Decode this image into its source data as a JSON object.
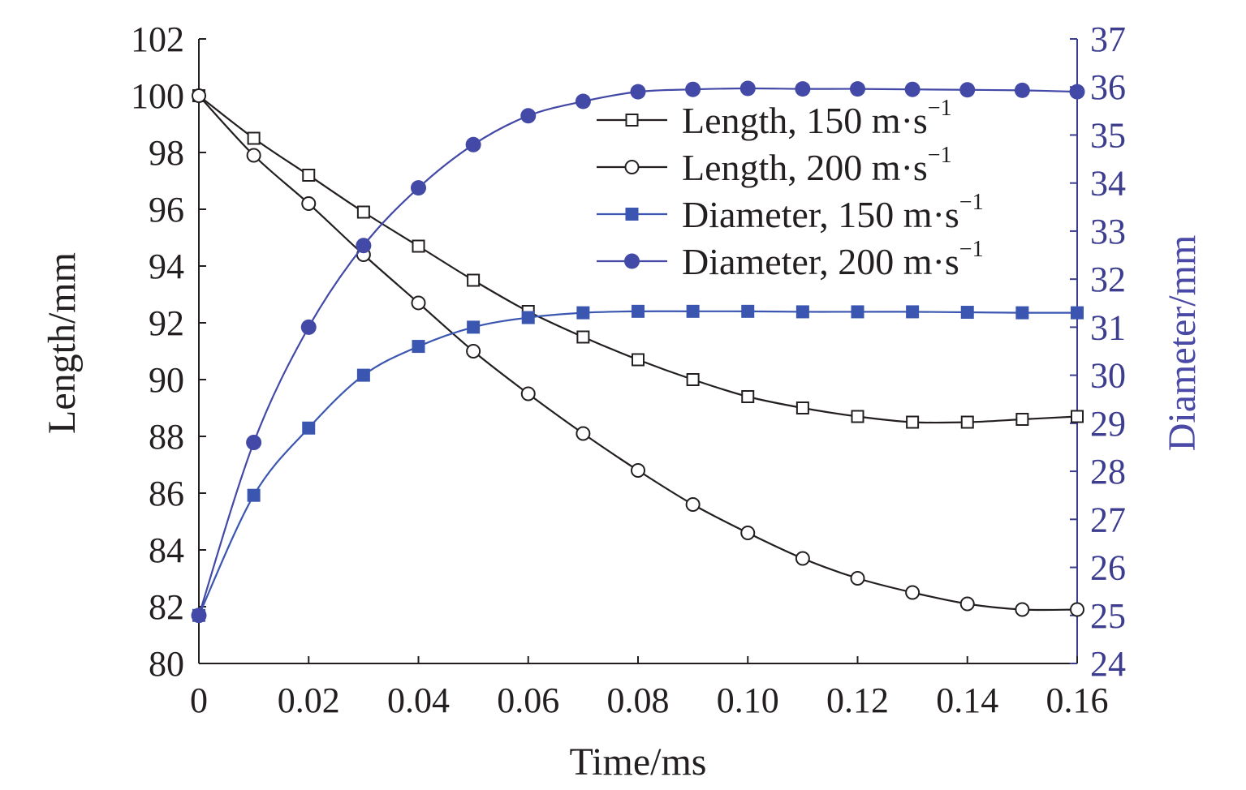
{
  "chart_data": {
    "type": "line",
    "title": "",
    "xlabel": "Time/ms",
    "ylabel": "Length/mm",
    "y2label": "Diameter/mm",
    "xlim": [
      0,
      0.16
    ],
    "ylim": [
      80,
      102
    ],
    "y2lim": [
      24,
      37
    ],
    "x_ticks": [
      "0",
      "0.02",
      "0.04",
      "0.06",
      "0.08",
      "0.10",
      "0.12",
      "0.14",
      "0.16"
    ],
    "x_tick_values": [
      0,
      0.02,
      0.04,
      0.06,
      0.08,
      0.1,
      0.12,
      0.14,
      0.16
    ],
    "y_ticks": [
      "80",
      "82",
      "84",
      "86",
      "88",
      "90",
      "92",
      "94",
      "96",
      "98",
      "100",
      "102"
    ],
    "y_tick_values": [
      80,
      82,
      84,
      86,
      88,
      90,
      92,
      94,
      96,
      98,
      100,
      102
    ],
    "y2_ticks": [
      "24",
      "25",
      "26",
      "27",
      "28",
      "29",
      "30",
      "31",
      "32",
      "33",
      "34",
      "35",
      "36",
      "37"
    ],
    "y2_tick_values": [
      24,
      25,
      26,
      27,
      28,
      29,
      30,
      31,
      32,
      33,
      34,
      35,
      36,
      37
    ],
    "legend_position": "top-right",
    "x": [
      0,
      0.01,
      0.02,
      0.03,
      0.04,
      0.05,
      0.06,
      0.07,
      0.08,
      0.09,
      0.1,
      0.11,
      0.12,
      0.13,
      0.14,
      0.15,
      0.16
    ],
    "series": [
      {
        "name": "Length, 150 m·s",
        "superscript": "−1",
        "axis": "left",
        "marker": "square-open",
        "color": "#231f20",
        "values": [
          100,
          98.5,
          97.2,
          95.9,
          94.7,
          93.5,
          92.4,
          91.5,
          90.7,
          90.0,
          89.4,
          89.0,
          88.7,
          88.5,
          88.5,
          88.6,
          88.7
        ]
      },
      {
        "name": "Length, 200 m·s",
        "superscript": "−1",
        "axis": "left",
        "marker": "circle-open",
        "color": "#231f20",
        "values": [
          100,
          97.9,
          96.2,
          94.4,
          92.7,
          91.0,
          89.5,
          88.1,
          86.8,
          85.6,
          84.6,
          83.7,
          83.0,
          82.5,
          82.1,
          81.9,
          81.9
        ]
      },
      {
        "name": "Diameter, 150 m·s",
        "superscript": "−1",
        "axis": "right",
        "marker": "square-filled",
        "color": "#3a56b0",
        "values": [
          25.0,
          27.5,
          28.9,
          30.0,
          30.6,
          31.0,
          31.2,
          31.3,
          31.33,
          31.33,
          31.33,
          31.32,
          31.32,
          31.32,
          31.31,
          31.3,
          31.3
        ]
      },
      {
        "name": "Diameter, 200 m·s",
        "superscript": "−1",
        "axis": "right",
        "marker": "circle-filled",
        "color": "#4349a6",
        "values": [
          25.0,
          28.6,
          31.0,
          32.7,
          33.9,
          34.8,
          35.4,
          35.7,
          35.9,
          35.95,
          35.97,
          35.96,
          35.96,
          35.95,
          35.94,
          35.93,
          35.9
        ]
      }
    ]
  }
}
